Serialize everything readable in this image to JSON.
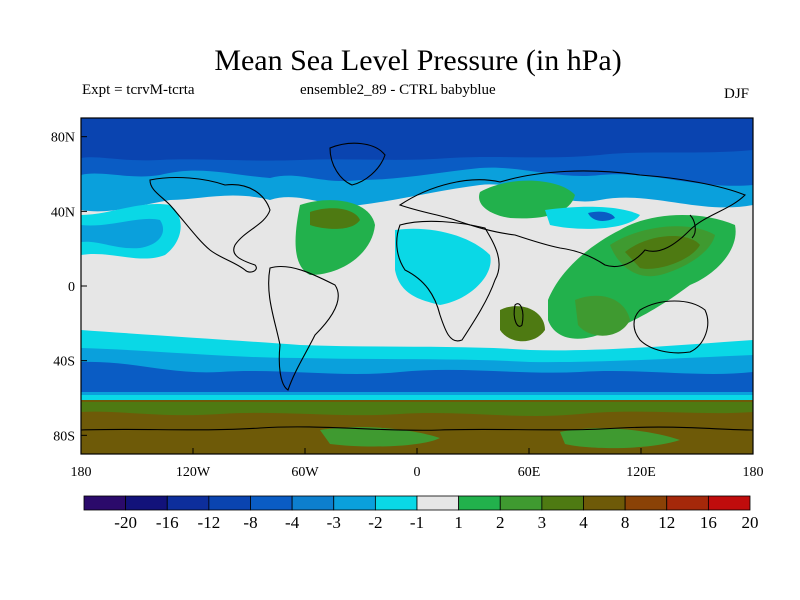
{
  "title": "Mean Sea Level Pressure (in hPa)",
  "subtitle_left": "Expt = tcrvM-tcrta",
  "subtitle_center": "ensemble2_89 - CTRL babyblue",
  "season": "DJF",
  "axes": {
    "lon_labels": [
      "180",
      "120W",
      "60W",
      "0",
      "60E",
      "120E",
      "180"
    ],
    "lat_labels": [
      "80N",
      "40N",
      "0",
      "40S",
      "80S"
    ]
  },
  "colorbar": {
    "colors": [
      "#2b0a6b",
      "#12127a",
      "#0d2e9c",
      "#0a44b0",
      "#0a5cc4",
      "#0d7fce",
      "#0aa0dc",
      "#0ad8e6",
      "#e6e6e6",
      "#22b14c",
      "#3f9a30",
      "#4e7a12",
      "#6e5a08",
      "#8a4206",
      "#a5280a",
      "#c00c0c"
    ],
    "labels": [
      "-20",
      "-16",
      "-12",
      "-8",
      "-4",
      "-3",
      "-2",
      "-1",
      "1",
      "2",
      "3",
      "4",
      "8",
      "12",
      "16",
      "20"
    ]
  },
  "palette": {
    "neutral": "#e6e6e6",
    "neg1": "#0ad8e6",
    "neg2": "#0aa0dc",
    "neg3": "#0d7fce",
    "neg4": "#0a5cc4",
    "neg8": "#0a44b0",
    "neg12": "#0d2e9c",
    "pos1": "#22b14c",
    "pos2": "#3f9a30",
    "pos3": "#4e7a12",
    "pos4": "#6e5a08"
  }
}
